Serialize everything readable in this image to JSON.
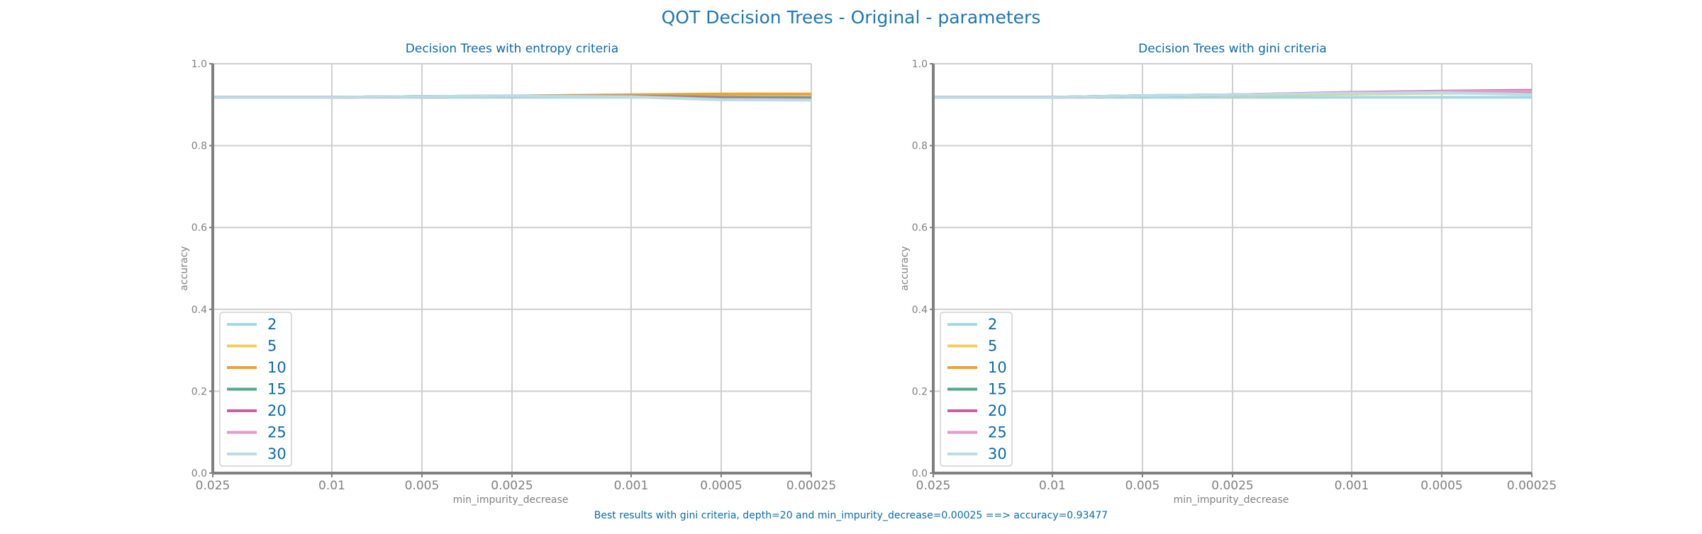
{
  "figure": {
    "title": "QOT Decision Trees - Original - parameters",
    "footer": "Best results with gini criteria, depth=20 and min_impurity_decrease=0.00025 ==> accuracy=0.93477"
  },
  "colors": {
    "title": "#1f77b4",
    "text": "#0a6bab",
    "axis": "#808080",
    "grid": "#cfcfcf",
    "tick_label": "#808080"
  },
  "chart_data": [
    {
      "type": "line",
      "title": "Decision Trees with entropy criteria",
      "xlabel": "min_impurity_decrease",
      "ylabel": "accuracy",
      "x": [
        0.025,
        0.01,
        0.005,
        0.0025,
        0.001,
        0.0005,
        0.00025
      ],
      "x_tick_labels": [
        "0.025",
        "0.01",
        "0.005",
        "0.0025",
        "0.001",
        "0.0005",
        "0.00025"
      ],
      "x_axis": "reversed log",
      "ylim": [
        0.0,
        1.0
      ],
      "y_ticks": [
        "0.0",
        "0.2",
        "0.4",
        "0.6",
        "0.8",
        "1.0"
      ],
      "grid": true,
      "legend_position": "bottom-left",
      "series": [
        {
          "name": "2",
          "color": "#a6d8e0",
          "values": [
            0.918,
            0.918,
            0.918,
            0.918,
            0.918,
            0.918,
            0.918
          ]
        },
        {
          "name": "5",
          "color": "#f0cf5c",
          "values": [
            0.918,
            0.918,
            0.92,
            0.921,
            0.924,
            0.925,
            0.925
          ]
        },
        {
          "name": "10",
          "color": "#f0a034",
          "values": [
            0.918,
            0.918,
            0.92,
            0.921,
            0.924,
            0.926,
            0.926
          ]
        },
        {
          "name": "15",
          "color": "#4fa98a",
          "values": [
            0.918,
            0.918,
            0.92,
            0.921,
            0.921,
            0.918,
            0.917
          ]
        },
        {
          "name": "20",
          "color": "#c95fa0",
          "values": [
            0.918,
            0.918,
            0.92,
            0.921,
            0.92,
            0.915,
            0.914
          ]
        },
        {
          "name": "25",
          "color": "#e59ac8",
          "values": [
            0.918,
            0.918,
            0.92,
            0.921,
            0.92,
            0.913,
            0.912
          ]
        },
        {
          "name": "30",
          "color": "#b9dde4",
          "values": [
            0.918,
            0.918,
            0.92,
            0.921,
            0.919,
            0.912,
            0.911
          ]
        }
      ]
    },
    {
      "type": "line",
      "title": "Decision Trees with gini criteria",
      "xlabel": "min_impurity_decrease",
      "ylabel": "accuracy",
      "x": [
        0.025,
        0.01,
        0.005,
        0.0025,
        0.001,
        0.0005,
        0.00025
      ],
      "x_tick_labels": [
        "0.025",
        "0.01",
        "0.005",
        "0.0025",
        "0.001",
        "0.0005",
        "0.00025"
      ],
      "x_axis": "reversed log",
      "ylim": [
        0.0,
        1.0
      ],
      "y_ticks": [
        "0.0",
        "0.2",
        "0.4",
        "0.6",
        "0.8",
        "1.0"
      ],
      "grid": true,
      "legend_position": "bottom-left",
      "series": [
        {
          "name": "2",
          "color": "#a6d8e0",
          "values": [
            0.918,
            0.918,
            0.918,
            0.918,
            0.918,
            0.918,
            0.918
          ]
        },
        {
          "name": "5",
          "color": "#f0cf5c",
          "values": [
            0.918,
            0.918,
            0.922,
            0.923,
            0.926,
            0.928,
            0.928
          ]
        },
        {
          "name": "10",
          "color": "#f0a034",
          "values": [
            0.918,
            0.918,
            0.922,
            0.924,
            0.928,
            0.93,
            0.931
          ]
        },
        {
          "name": "15",
          "color": "#4fa98a",
          "values": [
            0.918,
            0.918,
            0.922,
            0.924,
            0.929,
            0.931,
            0.932
          ]
        },
        {
          "name": "20",
          "color": "#c95fa0",
          "values": [
            0.918,
            0.918,
            0.922,
            0.924,
            0.93,
            0.933,
            0.935
          ]
        },
        {
          "name": "25",
          "color": "#e59ac8",
          "values": [
            0.918,
            0.918,
            0.922,
            0.924,
            0.929,
            0.932,
            0.933
          ]
        },
        {
          "name": "30",
          "color": "#b9dde4",
          "values": [
            0.918,
            0.918,
            0.922,
            0.924,
            0.928,
            0.929,
            0.925
          ]
        }
      ]
    }
  ]
}
